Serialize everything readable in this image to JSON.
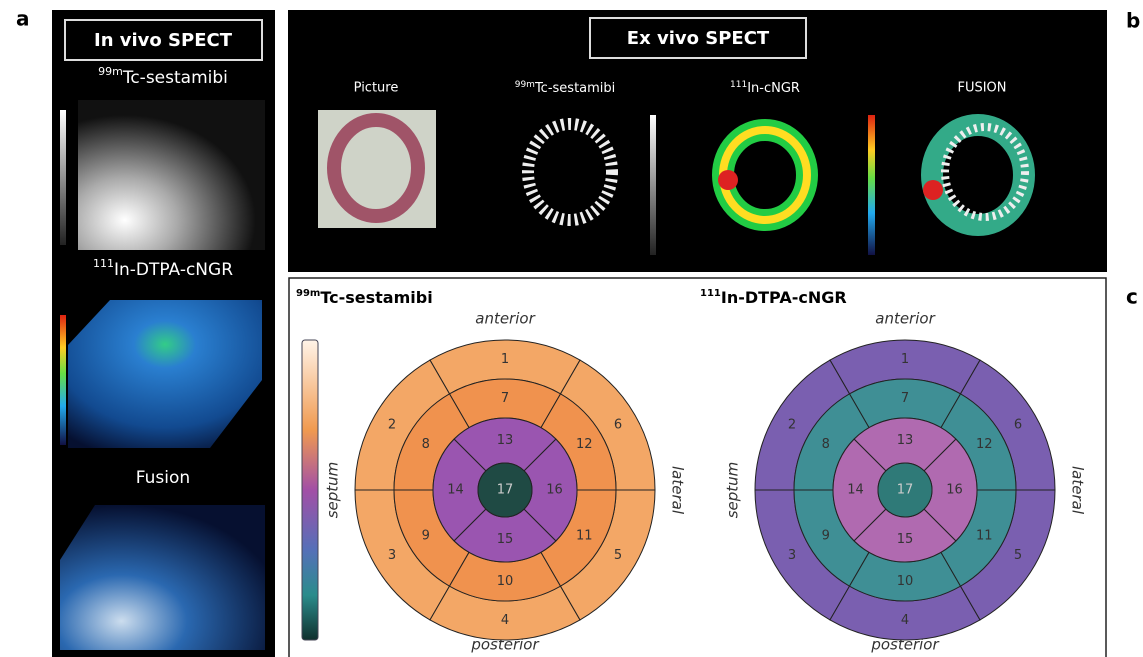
{
  "panel_labels": [
    "a",
    "b",
    "c"
  ],
  "in_vivo": {
    "title": "In vivo SPECT",
    "images": [
      {
        "sup": "99m",
        "label": "Tc-sestamibi"
      },
      {
        "sup": "111",
        "label": "In-DTPA-cNGR"
      },
      {
        "label": "Fusion"
      }
    ]
  },
  "ex_vivo": {
    "title": "Ex vivo SPECT",
    "images": [
      {
        "label": "Picture"
      },
      {
        "sup": "99m",
        "label": "Tc-sestamibi"
      },
      {
        "sup": "111",
        "label": "In-cNGR"
      },
      {
        "label": "FUSION"
      }
    ]
  },
  "polar_maps": [
    {
      "sup": "99m",
      "title": "Tc-sestamibi",
      "top": "anterior",
      "left": "septum",
      "right": "lateral",
      "bottom": "posterior",
      "segments": [
        "1",
        "2",
        "3",
        "4",
        "5",
        "6",
        "7",
        "8",
        "9",
        "10",
        "11",
        "12",
        "13",
        "14",
        "15",
        "16",
        "17"
      ]
    },
    {
      "sup": "111",
      "title": "In-DTPA-cNGR",
      "top": "anterior",
      "left": "septum",
      "right": "lateral",
      "bottom": "posterior",
      "segments": [
        "1",
        "2",
        "3",
        "4",
        "5",
        "6",
        "7",
        "8",
        "9",
        "10",
        "11",
        "12",
        "13",
        "14",
        "15",
        "16",
        "17"
      ]
    }
  ]
}
